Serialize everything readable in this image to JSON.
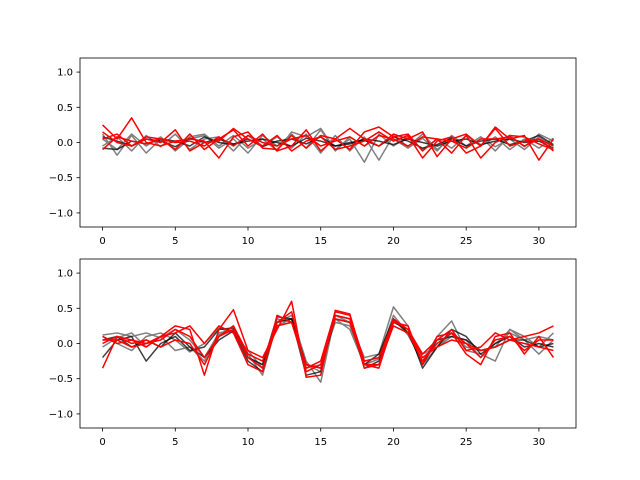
{
  "figure": {
    "background": "#ffffff"
  },
  "colors": {
    "gray": "#808080",
    "black": "#000000",
    "red": "#ff0000"
  },
  "chart_data": [
    {
      "type": "line",
      "xlim": [
        -1.55,
        32.55
      ],
      "ylim": [
        -1.2,
        1.2
      ],
      "xticks": [
        0,
        5,
        10,
        15,
        20,
        25,
        30
      ],
      "yticks": [
        -1.0,
        -0.5,
        0.0,
        0.5,
        1.0
      ],
      "xtick_labels": [
        "0",
        "5",
        "10",
        "15",
        "20",
        "25",
        "30"
      ],
      "ytick_labels": [
        "−1.0",
        "−0.5",
        "0.0",
        "0.5",
        "1.0"
      ],
      "grid": false,
      "x": [
        0,
        1,
        2,
        3,
        4,
        5,
        6,
        7,
        8,
        9,
        10,
        11,
        12,
        13,
        14,
        15,
        16,
        17,
        18,
        19,
        20,
        21,
        22,
        23,
        24,
        25,
        26,
        27,
        28,
        29,
        30,
        31
      ],
      "series": [
        {
          "color": "gray",
          "values": [
            0.12,
            -0.18,
            0.1,
            -0.15,
            0.05,
            -0.1,
            0.08,
            0.12,
            -0.05,
            0.1,
            -0.08,
            0.05,
            -0.12,
            0.15,
            0.08,
            0.2,
            -0.1,
            0.05,
            -0.28,
            0.12,
            -0.05,
            0.08,
            -0.1,
            0.05,
            -0.08,
            0.1,
            -0.05,
            0.08,
            -0.1,
            0.05,
            -0.08,
            0.06
          ]
        },
        {
          "color": "gray",
          "values": [
            -0.05,
            0.08,
            -0.12,
            0.1,
            -0.06,
            0.12,
            -0.1,
            0.05,
            0.08,
            -0.12,
            0.1,
            -0.05,
            0.08,
            -0.08,
            0.12,
            -0.15,
            0.1,
            -0.12,
            0.08,
            -0.25,
            0.1,
            -0.06,
            0.12,
            -0.1,
            0.06,
            -0.05,
            0.08,
            -0.12,
            0.1,
            -0.06,
            0.12,
            0.02
          ]
        },
        {
          "color": "gray",
          "values": [
            0.05,
            -0.1,
            0.12,
            -0.05,
            0.08,
            -0.12,
            0.05,
            0.1,
            -0.08,
            0.05,
            -0.15,
            0.1,
            -0.05,
            0.12,
            -0.08,
            0.18,
            -0.12,
            0.08,
            -0.05,
            0.1,
            0.05,
            -0.08,
            0.06,
            -0.12,
            0.1,
            -0.05,
            0.08,
            -0.06,
            0.05,
            -0.1,
            0.08,
            -0.05
          ]
        },
        {
          "color": "black",
          "values": [
            -0.08,
            -0.1,
            0.02,
            -0.02,
            0.05,
            0.02,
            -0.05,
            0.08,
            0.0,
            -0.03,
            0.05,
            -0.06,
            0.02,
            0.05,
            -0.02,
            0.08,
            -0.05,
            0.0,
            0.03,
            -0.05,
            0.08,
            0.02,
            -0.08,
            -0.03,
            0.06,
            -0.05,
            0.02,
            0.05,
            -0.03,
            0.02,
            0.1,
            -0.03
          ]
        },
        {
          "color": "black",
          "values": [
            0.08,
            0.02,
            -0.05,
            0.05,
            0.02,
            -0.06,
            0.06,
            0.0,
            0.05,
            -0.02,
            0.02,
            0.05,
            0.0,
            -0.05,
            0.06,
            0.02,
            -0.05,
            -0.02,
            0.05,
            0.02,
            -0.03,
            0.05,
            0.0,
            -0.05,
            0.02,
            0.05,
            -0.03,
            0.02,
            0.05,
            0.0,
            0.02,
            -0.08
          ]
        },
        {
          "color": "red",
          "values": [
            0.25,
            0.05,
            0.35,
            0.0,
            -0.05,
            0.02,
            0.05,
            0.02,
            -0.22,
            0.08,
            0.15,
            -0.08,
            -0.1,
            0.1,
            -0.08,
            0.1,
            0.05,
            -0.1,
            0.15,
            0.22,
            0.08,
            0.12,
            -0.12,
            0.05,
            -0.15,
            0.1,
            -0.22,
            0.0,
            0.1,
            0.08,
            -0.02,
            -0.1
          ]
        },
        {
          "color": "red",
          "values": [
            0.05,
            0.12,
            -0.05,
            0.08,
            0.05,
            -0.1,
            0.12,
            -0.1,
            0.05,
            0.18,
            -0.05,
            0.12,
            -0.12,
            -0.05,
            0.18,
            -0.12,
            0.05,
            0.2,
            0.05,
            -0.05,
            0.12,
            0.05,
            0.15,
            -0.2,
            0.05,
            0.12,
            -0.05,
            0.22,
            0.05,
            0.1,
            -0.25,
            0.05
          ]
        },
        {
          "color": "red",
          "values": [
            0.15,
            0.0,
            -0.05,
            0.05,
            0.0,
            0.18,
            -0.12,
            0.0,
            0.02,
            0.2,
            0.05,
            -0.05,
            0.1,
            -0.12,
            0.02,
            0.08,
            -0.1,
            -0.05,
            0.02,
            0.15,
            0.02,
            0.1,
            -0.22,
            0.02,
            0.08,
            -0.15,
            -0.05,
            0.2,
            -0.05,
            0.02,
            0.05,
            -0.05
          ]
        },
        {
          "color": "red",
          "values": [
            -0.1,
            0.08,
            0.02,
            -0.02,
            0.05,
            0.0,
            0.02,
            -0.05,
            0.08,
            -0.05,
            0.1,
            0.0,
            -0.05,
            0.05,
            0.1,
            -0.05,
            0.02,
            0.08,
            -0.05,
            0.1,
            0.05,
            -0.05,
            0.08,
            0.05,
            0.02,
            -0.08,
            0.05,
            0.05,
            0.08,
            -0.05,
            0.05,
            -0.12
          ]
        }
      ]
    },
    {
      "type": "line",
      "xlim": [
        -1.55,
        32.55
      ],
      "ylim": [
        -1.2,
        1.2
      ],
      "xticks": [
        0,
        5,
        10,
        15,
        20,
        25,
        30
      ],
      "yticks": [
        -1.0,
        -0.5,
        0.0,
        0.5,
        1.0
      ],
      "xtick_labels": [
        "0",
        "5",
        "10",
        "15",
        "20",
        "25",
        "30"
      ],
      "ytick_labels": [
        "−1.0",
        "−0.5",
        "0.0",
        "0.5",
        "1.0"
      ],
      "grid": false,
      "x": [
        0,
        1,
        2,
        3,
        4,
        5,
        6,
        7,
        8,
        9,
        10,
        11,
        12,
        13,
        14,
        15,
        16,
        17,
        18,
        19,
        20,
        21,
        22,
        23,
        24,
        25,
        26,
        27,
        28,
        29,
        30,
        31
      ],
      "series": [
        {
          "color": "gray",
          "values": [
            0.12,
            0.15,
            0.1,
            0.15,
            0.08,
            0.2,
            0.05,
            -0.2,
            0.15,
            0.2,
            -0.15,
            -0.45,
            0.3,
            0.4,
            -0.25,
            -0.55,
            0.4,
            0.3,
            -0.2,
            -0.15,
            0.52,
            0.25,
            -0.3,
            -0.05,
            0.15,
            -0.05,
            -0.1,
            -0.05,
            0.2,
            0.1,
            -0.05,
            0.15
          ]
        },
        {
          "color": "gray",
          "values": [
            -0.05,
            0.08,
            0.15,
            -0.05,
            0.1,
            -0.1,
            -0.05,
            -0.25,
            0.12,
            0.25,
            -0.2,
            -0.3,
            0.25,
            0.35,
            -0.3,
            -0.4,
            0.35,
            0.2,
            -0.3,
            -0.22,
            0.35,
            0.12,
            -0.25,
            0.1,
            0.32,
            -0.1,
            -0.15,
            -0.25,
            0.2,
            0.05,
            -0.15,
            0.05
          ]
        },
        {
          "color": "gray",
          "values": [
            0.1,
            0.0,
            -0.1,
            0.1,
            0.15,
            0.05,
            -0.12,
            0.0,
            0.22,
            0.15,
            -0.1,
            -0.35,
            0.35,
            0.3,
            -0.35,
            -0.3,
            0.3,
            0.25,
            -0.25,
            -0.2,
            0.4,
            0.15,
            -0.15,
            -0.05,
            0.1,
            0.05,
            -0.2,
            0.0,
            0.15,
            0.05,
            0.1,
            0.05
          ]
        },
        {
          "color": "black",
          "values": [
            0.05,
            0.1,
            -0.05,
            0.05,
            -0.05,
            0.15,
            -0.05,
            -0.2,
            0.05,
            0.18,
            -0.25,
            -0.4,
            0.3,
            0.35,
            -0.3,
            -0.35,
            0.35,
            0.3,
            -0.3,
            -0.15,
            0.35,
            0.15,
            -0.3,
            0.05,
            0.1,
            0.05,
            -0.1,
            -0.05,
            0.05,
            0.05,
            -0.05,
            0.0
          ]
        },
        {
          "color": "black",
          "values": [
            -0.2,
            0.05,
            0.1,
            -0.25,
            0.0,
            0.1,
            -0.1,
            -0.05,
            0.2,
            0.22,
            -0.2,
            -0.3,
            0.38,
            0.35,
            -0.45,
            -0.4,
            0.4,
            0.35,
            -0.35,
            -0.25,
            0.3,
            0.2,
            -0.35,
            -0.05,
            0.2,
            0.1,
            -0.15,
            0.0,
            0.1,
            -0.05,
            0.0,
            -0.05
          ]
        },
        {
          "color": "red",
          "values": [
            -0.35,
            0.1,
            0.05,
            -0.05,
            0.1,
            0.25,
            0.2,
            -0.45,
            0.2,
            0.48,
            -0.1,
            -0.2,
            0.2,
            0.6,
            -0.48,
            -0.45,
            0.47,
            0.42,
            -0.3,
            -0.35,
            0.3,
            0.25,
            -0.3,
            0.1,
            0.15,
            -0.15,
            -0.3,
            0.1,
            0.15,
            -0.15,
            0.1,
            -0.2
          ]
        },
        {
          "color": "red",
          "values": [
            0.1,
            0.0,
            0.05,
            0.0,
            0.1,
            0.15,
            0.25,
            0.0,
            0.25,
            0.15,
            -0.3,
            -0.4,
            0.4,
            0.3,
            -0.35,
            -0.25,
            0.45,
            0.4,
            -0.25,
            -0.2,
            0.32,
            0.2,
            -0.15,
            0.05,
            0.2,
            -0.1,
            -0.05,
            0.15,
            0.05,
            0.1,
            0.15,
            0.25
          ]
        },
        {
          "color": "red",
          "values": [
            0.05,
            0.05,
            -0.05,
            0.0,
            0.05,
            0.2,
            0.1,
            -0.2,
            0.1,
            0.25,
            -0.15,
            -0.25,
            0.3,
            0.45,
            -0.4,
            -0.3,
            0.35,
            0.3,
            -0.3,
            -0.3,
            0.25,
            0.15,
            -0.25,
            0.0,
            0.15,
            0.0,
            -0.2,
            0.05,
            0.1,
            -0.1,
            0.05,
            0.05
          ]
        },
        {
          "color": "red",
          "values": [
            0.0,
            0.1,
            0.0,
            0.05,
            -0.05,
            0.05,
            0.0,
            -0.3,
            0.1,
            0.2,
            -0.2,
            -0.35,
            0.25,
            0.3,
            -0.3,
            -0.35,
            0.4,
            0.35,
            -0.35,
            -0.3,
            0.35,
            0.2,
            -0.2,
            -0.05,
            0.05,
            0.0,
            -0.1,
            -0.05,
            0.05,
            0.0,
            -0.05,
            -0.1
          ]
        }
      ]
    }
  ]
}
